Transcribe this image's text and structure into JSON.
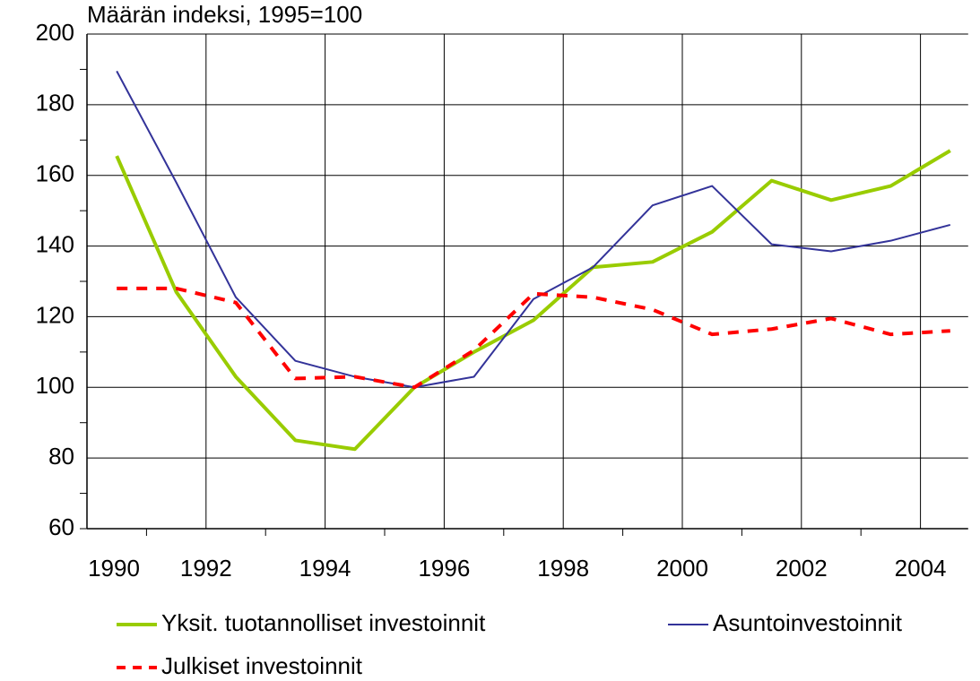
{
  "chart_data": {
    "type": "line",
    "title": "Määrän indeksi, 1995=100",
    "categories": [
      "1990",
      null,
      "1992",
      null,
      "1994",
      null,
      "1996",
      null,
      "1998",
      null,
      "2000",
      null,
      "2002",
      null,
      "2004"
    ],
    "series": [
      {
        "name": "Yksit. tuotannolliset investoinnit",
        "color": "#99cc00",
        "dash": false,
        "values": [
          165.5,
          127,
          103,
          85,
          82.5,
          100,
          110,
          119,
          134,
          135.5,
          144,
          158.5,
          153,
          157,
          167
        ]
      },
      {
        "name": "Asuntoinvestoinnit",
        "color": "#333399",
        "dash": false,
        "values": [
          189.5,
          158,
          125.5,
          107.5,
          103,
          100,
          103,
          125,
          134,
          151.5,
          157,
          140.5,
          138.5,
          141.5,
          146
        ]
      },
      {
        "name": "Julkiset investoinnit",
        "color": "#ff0000",
        "dash": true,
        "values": [
          128,
          128,
          124,
          102.5,
          103,
          100,
          110.5,
          126.5,
          125.5,
          122,
          115,
          116.5,
          119.5,
          115,
          116
        ]
      }
    ],
    "ylim": [
      60,
      200
    ],
    "yticks": [
      60,
      80,
      100,
      120,
      140,
      160,
      180,
      200
    ],
    "grid": true
  }
}
